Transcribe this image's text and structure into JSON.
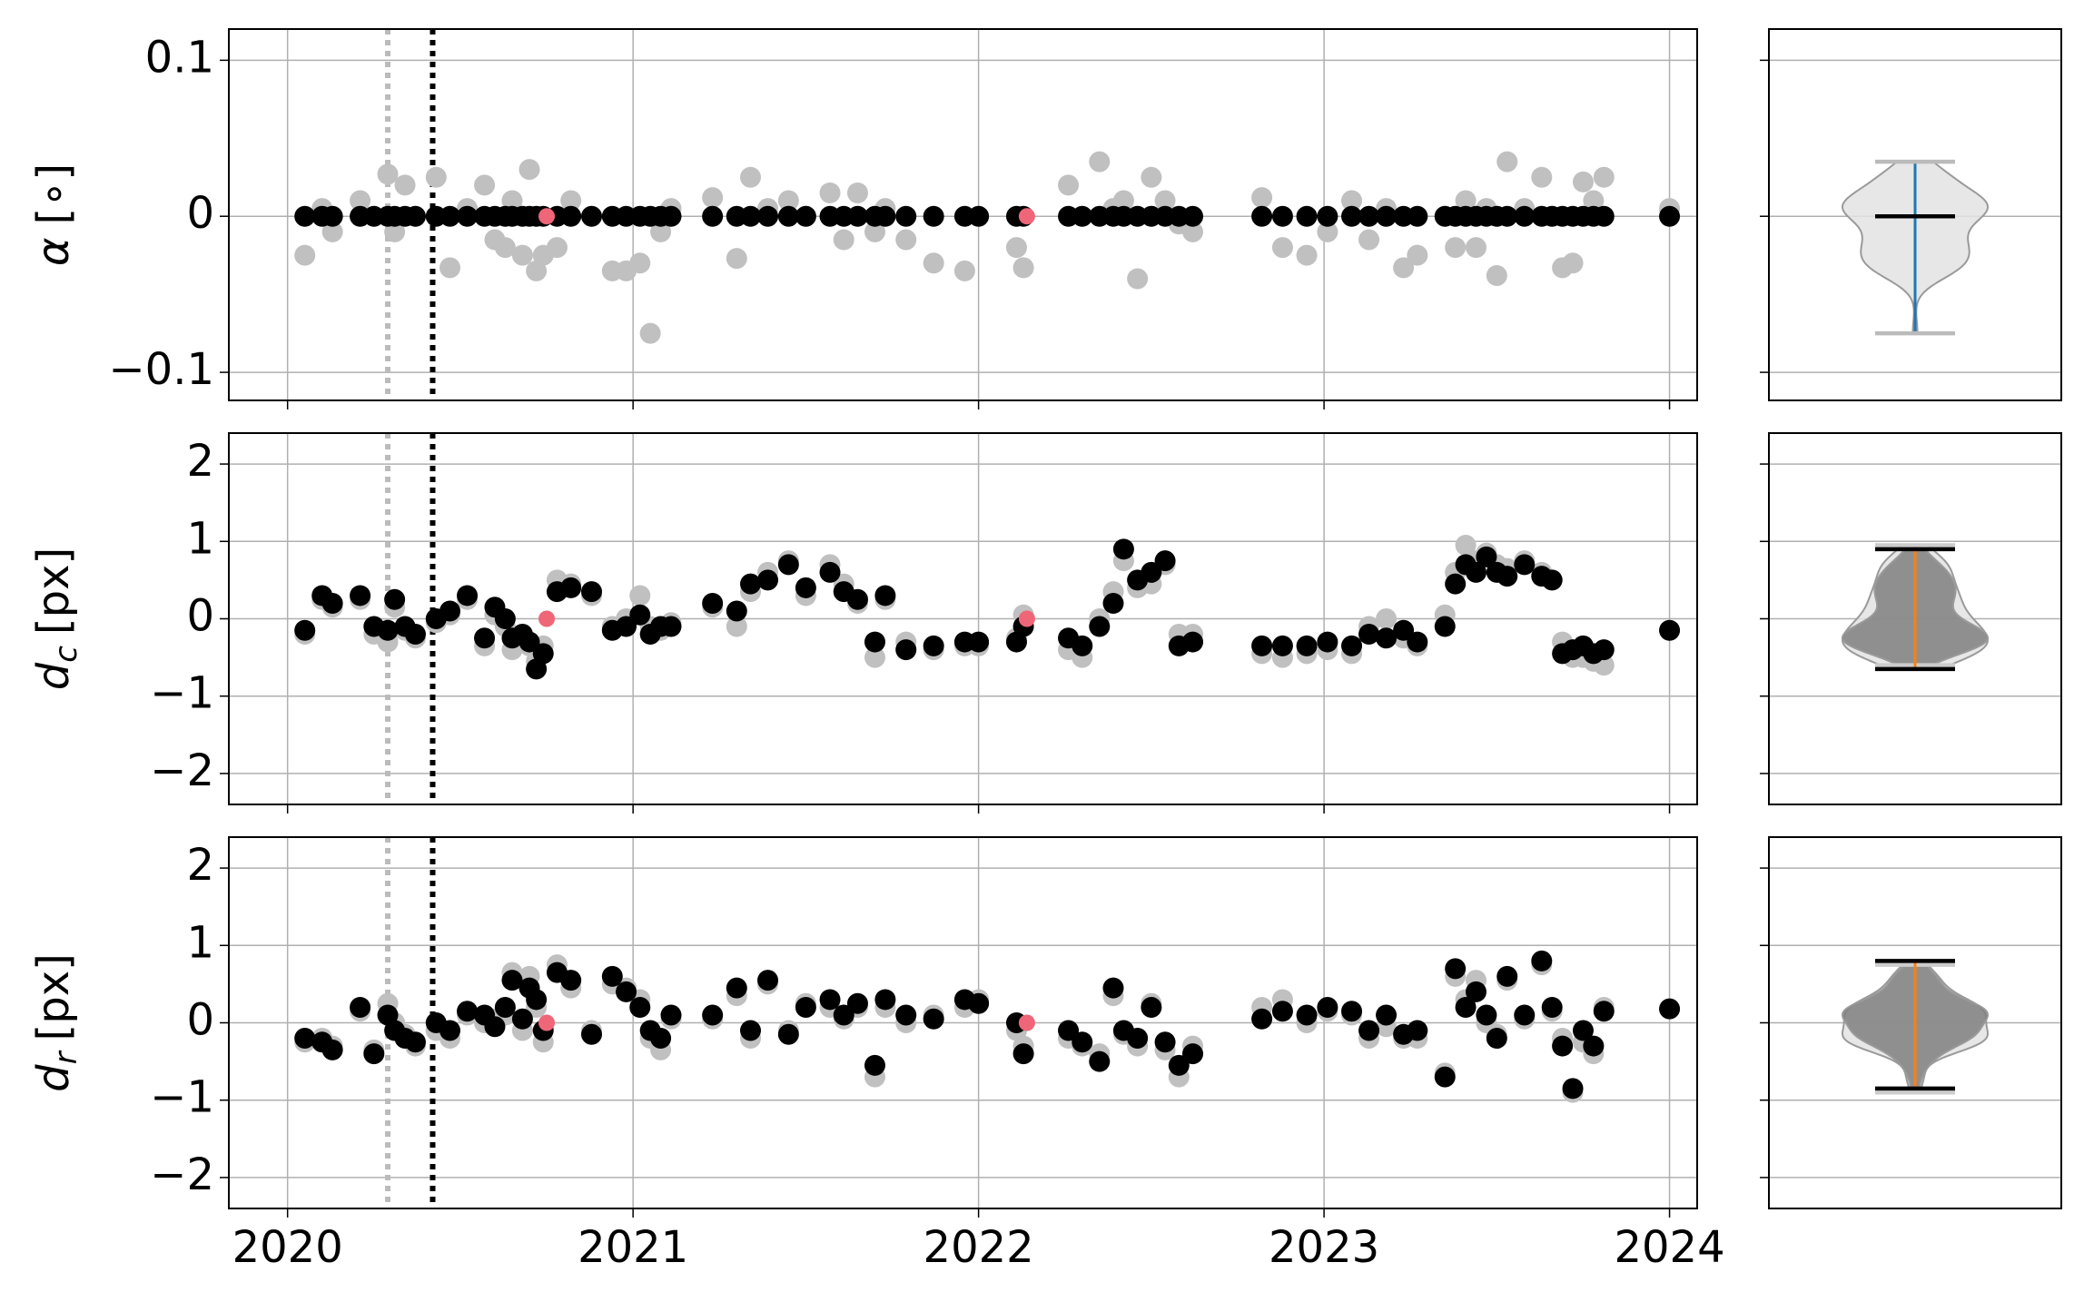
{
  "chart_data": {
    "type": "scatter",
    "x": [
      2020.05,
      2020.1,
      2020.13,
      2020.21,
      2020.25,
      2020.29,
      2020.31,
      2020.34,
      2020.37,
      2020.43,
      2020.47,
      2020.52,
      2020.57,
      2020.6,
      2020.63,
      2020.65,
      2020.68,
      2020.7,
      2020.72,
      2020.74,
      2020.78,
      2020.82,
      2020.88,
      2020.94,
      2020.98,
      2021.02,
      2021.05,
      2021.08,
      2021.11,
      2021.23,
      2021.3,
      2021.34,
      2021.39,
      2021.45,
      2021.5,
      2021.57,
      2021.61,
      2021.65,
      2021.7,
      2021.73,
      2021.79,
      2021.87,
      2021.96,
      2022.0,
      2022.11,
      2022.13,
      2022.26,
      2022.3,
      2022.35,
      2022.39,
      2022.42,
      2022.46,
      2022.5,
      2022.54,
      2022.58,
      2022.62,
      2022.82,
      2022.88,
      2022.95,
      2023.01,
      2023.08,
      2023.13,
      2023.18,
      2023.23,
      2023.27,
      2023.35,
      2023.38,
      2023.41,
      2023.44,
      2023.47,
      2023.5,
      2023.53,
      2023.58,
      2023.63,
      2023.66,
      2023.69,
      2023.72,
      2023.75,
      2023.78,
      2023.81,
      2024.0
    ],
    "xlim": [
      2019.83,
      2024.08
    ],
    "xticks": [
      2020,
      2021,
      2022,
      2023,
      2024
    ],
    "grid": true,
    "vlines": [
      {
        "x": 2020.29,
        "color": "#bbbbbb"
      },
      {
        "x": 2020.42,
        "color": "#000000"
      }
    ],
    "panels": [
      {
        "ylabel": [
          "α",
          "[∘]"
        ],
        "ylim": [
          -0.118,
          0.12
        ],
        "yticks": [
          {
            "value": -0.1,
            "label": "−0.1"
          },
          0,
          0.1
        ],
        "series": [
          {
            "color": "#c0c0c0",
            "violin": {
              "body": "#e3e3e3",
              "line": "#1f77b4",
              "cap": "#bbbbbb"
            },
            "values": [
              -0.025,
              0.005,
              -0.01,
              0.01,
              0,
              0.027,
              -0.01,
              0.02,
              0,
              0.025,
              -0.033,
              0.005,
              0.02,
              -0.015,
              -0.02,
              0.01,
              -0.025,
              0.03,
              -0.035,
              -0.025,
              -0.02,
              0.01,
              0,
              -0.035,
              -0.035,
              -0.03,
              -0.075,
              -0.01,
              0.005,
              0.012,
              -0.027,
              0.025,
              0.005,
              0.01,
              0,
              0.015,
              -0.015,
              0.015,
              -0.01,
              0.005,
              -0.015,
              -0.03,
              -0.035,
              0,
              -0.02,
              -0.033,
              0.02,
              0,
              0.035,
              0.005,
              0.01,
              -0.04,
              0.025,
              0.01,
              -0.005,
              -0.01,
              0.012,
              -0.02,
              -0.025,
              -0.01,
              0.01,
              -0.015,
              0.005,
              -0.033,
              -0.025,
              0,
              -0.02,
              0.01,
              -0.02,
              0.005,
              -0.038,
              0.035,
              0.005,
              0.025,
              0,
              -0.033,
              -0.03,
              0.022,
              0.01,
              0.025,
              0.005
            ]
          },
          {
            "color": "#000000",
            "violin": {
              "body": "#7f7f7f",
              "line": "#ff7f0e",
              "cap": "#000000"
            },
            "values": [
              0,
              0,
              0,
              0,
              0,
              0,
              0,
              0,
              0,
              0,
              0,
              0,
              0,
              0,
              0,
              0,
              0,
              0,
              0,
              0,
              0,
              0,
              0,
              0,
              0,
              0,
              0,
              0,
              0,
              0,
              0,
              0,
              0,
              0,
              0,
              0,
              0,
              0,
              0,
              0,
              0,
              0,
              0,
              0,
              0,
              0,
              0,
              0,
              0,
              0,
              0,
              0,
              0,
              0,
              0,
              0,
              0,
              0,
              0,
              0,
              0,
              0,
              0,
              0,
              0,
              0,
              0,
              0,
              0,
              0,
              0,
              0,
              0,
              0,
              0,
              0,
              0,
              0,
              0,
              0,
              0
            ]
          },
          {
            "color": "#ee6677",
            "x": [
              2020.75,
              2022.14
            ],
            "values": [
              0,
              0
            ]
          }
        ]
      },
      {
        "ylabel": [
          "d",
          "c",
          "[px]"
        ],
        "ylim": [
          -2.4,
          2.4
        ],
        "yticks": [
          {
            "value": -2,
            "label": "−2"
          },
          {
            "value": -1,
            "label": "−1"
          },
          0,
          1,
          2
        ],
        "series": [
          {
            "color": "#c0c0c0",
            "violin": {
              "body": "#e3e3e3",
              "line": "#bbbbbb",
              "cap": "#cccccc"
            },
            "values": [
              -0.2,
              0.25,
              0.15,
              0.25,
              -0.2,
              -0.3,
              0.15,
              -0.15,
              -0.25,
              -0.05,
              0.05,
              0.25,
              -0.35,
              0.05,
              -0.1,
              -0.4,
              -0.3,
              -0.35,
              -0.55,
              -0.35,
              0.5,
              0.45,
              0.3,
              -0.1,
              0,
              0.3,
              -0.1,
              -0.15,
              -0.05,
              0.15,
              -0.1,
              0.35,
              0.6,
              0.75,
              0.3,
              0.7,
              0.45,
              0.2,
              -0.5,
              0.25,
              -0.3,
              -0.4,
              -0.35,
              -0.35,
              -0.25,
              0.05,
              -0.4,
              -0.5,
              0,
              0.35,
              0.75,
              0.4,
              0.45,
              0.7,
              -0.2,
              -0.2,
              -0.45,
              -0.5,
              -0.45,
              -0.4,
              -0.45,
              -0.1,
              0,
              -0.25,
              -0.35,
              0.05,
              0.6,
              0.95,
              0.75,
              0.85,
              0.7,
              0.65,
              0.75,
              0.6,
              0.5,
              -0.3,
              -0.5,
              -0.5,
              -0.55,
              -0.6,
              -0.15
            ]
          },
          {
            "color": "#000000",
            "violin": {
              "body": "#7f7f7f",
              "line": "#ff7f0e",
              "cap": "#000000"
            },
            "values": [
              -0.15,
              0.3,
              0.2,
              0.3,
              -0.1,
              -0.15,
              0.25,
              -0.1,
              -0.2,
              0,
              0.1,
              0.3,
              -0.25,
              0.15,
              0,
              -0.25,
              -0.2,
              -0.3,
              -0.65,
              -0.45,
              0.35,
              0.4,
              0.35,
              -0.15,
              -0.1,
              0.05,
              -0.2,
              -0.1,
              -0.1,
              0.2,
              0.1,
              0.45,
              0.5,
              0.7,
              0.4,
              0.6,
              0.35,
              0.25,
              -0.3,
              0.3,
              -0.4,
              -0.35,
              -0.3,
              -0.3,
              -0.3,
              -0.1,
              -0.25,
              -0.35,
              -0.1,
              0.2,
              0.9,
              0.5,
              0.6,
              0.75,
              -0.35,
              -0.3,
              -0.35,
              -0.35,
              -0.35,
              -0.3,
              -0.35,
              -0.2,
              -0.25,
              -0.15,
              -0.3,
              -0.1,
              0.45,
              0.7,
              0.6,
              0.8,
              0.6,
              0.55,
              0.7,
              0.55,
              0.5,
              -0.45,
              -0.4,
              -0.35,
              -0.45,
              -0.4,
              -0.15
            ]
          },
          {
            "color": "#ee6677",
            "x": [
              2020.75,
              2022.14
            ],
            "values": [
              0,
              0
            ]
          }
        ]
      },
      {
        "ylabel": [
          "d",
          "r",
          "[px]"
        ],
        "ylim": [
          -2.4,
          2.4
        ],
        "yticks": [
          {
            "value": -2,
            "label": "−2"
          },
          {
            "value": -1,
            "label": "−1"
          },
          0,
          1,
          2
        ],
        "series": [
          {
            "color": "#c0c0c0",
            "violin": {
              "body": "#e3e3e3",
              "line": "#bbbbbb",
              "cap": "#cccccc"
            },
            "values": [
              -0.25,
              -0.2,
              -0.3,
              0.15,
              -0.35,
              0.25,
              0,
              -0.15,
              -0.3,
              -0.1,
              -0.2,
              0.1,
              0,
              0.05,
              0.1,
              0.65,
              -0.1,
              0.6,
              0.2,
              -0.25,
              0.75,
              0.45,
              -0.1,
              0.5,
              0.45,
              0.3,
              -0.2,
              -0.35,
              0.05,
              0.05,
              0.35,
              -0.2,
              0.5,
              -0.1,
              0.25,
              0.2,
              0.05,
              0.2,
              -0.7,
              0.2,
              0,
              0.1,
              0.2,
              0.3,
              -0.1,
              -0.3,
              -0.2,
              -0.3,
              -0.4,
              0.35,
              -0.15,
              -0.3,
              0.25,
              -0.35,
              -0.7,
              -0.3,
              0.2,
              0.3,
              0,
              0.15,
              0.1,
              -0.2,
              -0.05,
              -0.2,
              -0.2,
              -0.65,
              0.6,
              0.3,
              0.55,
              0,
              -0.15,
              0.55,
              0.05,
              0.75,
              0.15,
              -0.2,
              -0.9,
              -0.25,
              -0.4,
              0.2,
              0.18
            ]
          },
          {
            "color": "#000000",
            "violin": {
              "body": "#7f7f7f",
              "line": "#ff7f0e",
              "cap": "#000000"
            },
            "values": [
              -0.2,
              -0.25,
              -0.35,
              0.2,
              -0.4,
              0.1,
              -0.1,
              -0.2,
              -0.25,
              0,
              -0.1,
              0.15,
              0.1,
              -0.05,
              0.2,
              0.55,
              0.05,
              0.45,
              0.3,
              -0.1,
              0.65,
              0.55,
              -0.15,
              0.6,
              0.4,
              0.2,
              -0.1,
              -0.2,
              0.1,
              0.1,
              0.45,
              -0.1,
              0.55,
              -0.15,
              0.2,
              0.3,
              0.1,
              0.25,
              -0.55,
              0.3,
              0.1,
              0.05,
              0.3,
              0.25,
              0,
              -0.4,
              -0.1,
              -0.25,
              -0.5,
              0.45,
              -0.1,
              -0.2,
              0.2,
              -0.25,
              -0.55,
              -0.4,
              0.05,
              0.15,
              0.1,
              0.2,
              0.15,
              -0.1,
              0.1,
              -0.15,
              -0.1,
              -0.7,
              0.7,
              0.2,
              0.4,
              0.1,
              -0.2,
              0.6,
              0.1,
              0.8,
              0.2,
              -0.3,
              -0.85,
              -0.1,
              -0.3,
              0.15,
              0.18
            ]
          },
          {
            "color": "#ee6677",
            "x": [
              2020.75,
              2022.14
            ],
            "values": [
              0,
              0
            ]
          }
        ]
      }
    ]
  }
}
